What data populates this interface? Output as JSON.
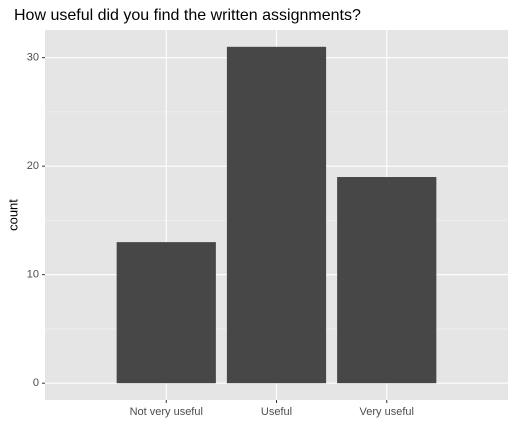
{
  "chart_data": {
    "type": "bar",
    "title": "How useful did you find the written assignments?",
    "y_label": "count",
    "categories": [
      "Not very useful",
      "Useful",
      "Very useful"
    ],
    "values": [
      13,
      31,
      19
    ],
    "color": "#474747",
    "ylim": [
      -1.55,
      32.55
    ],
    "yticks": [
      0,
      10,
      20,
      30
    ],
    "minor_yticks": [
      5,
      15,
      25
    ],
    "grid": true
  }
}
